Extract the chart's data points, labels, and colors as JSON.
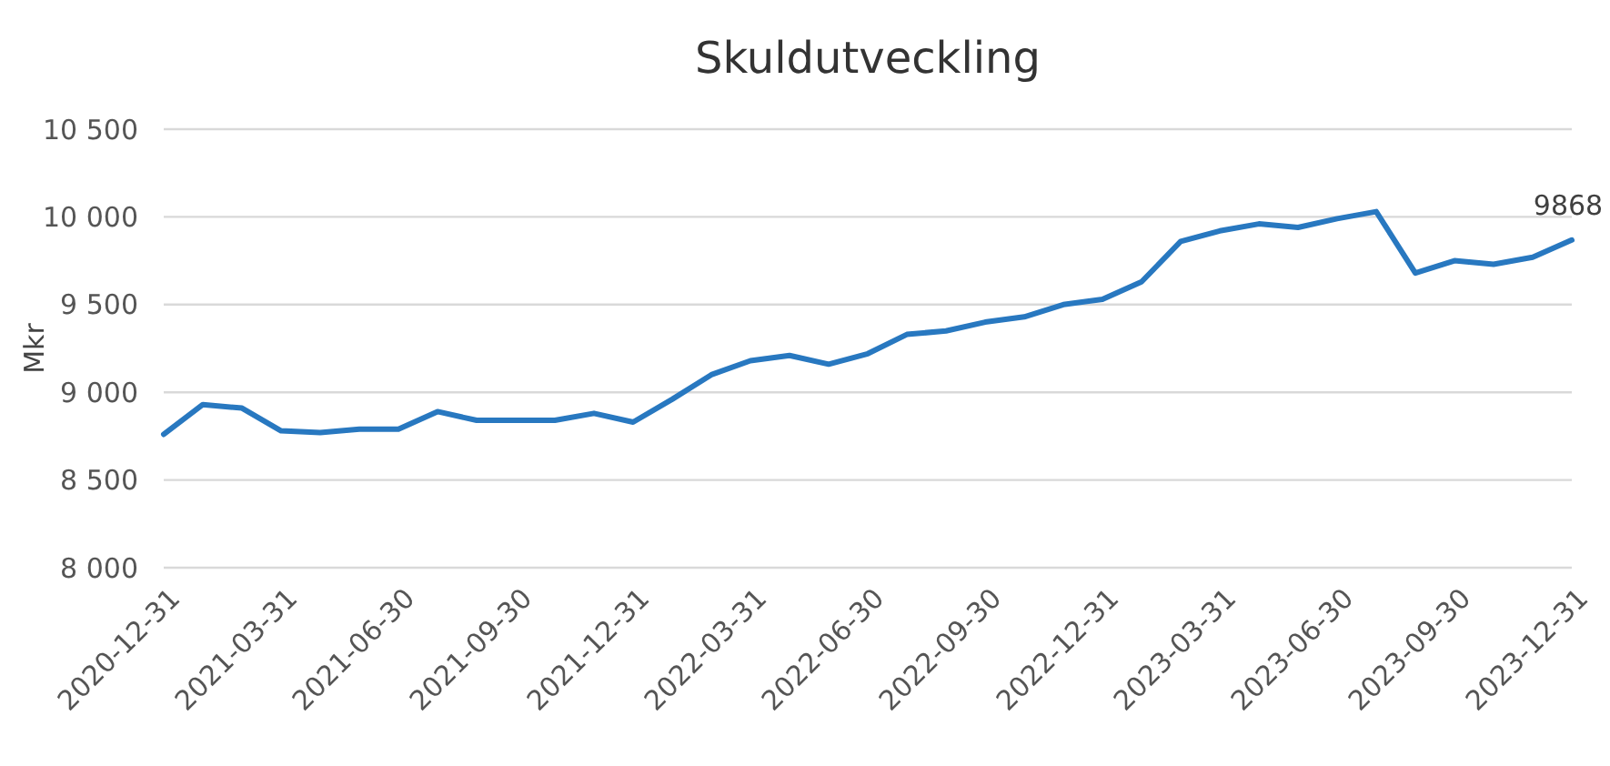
{
  "chart_data": {
    "type": "line",
    "title": "Skuldutveckling",
    "ylabel": "Mkr",
    "categories": [
      "2020-12-31",
      null,
      null,
      "2021-03-31",
      null,
      null,
      "2021-06-30",
      null,
      null,
      "2021-09-30",
      null,
      null,
      "2021-12-31",
      null,
      null,
      "2022-03-31",
      null,
      null,
      "2022-06-30",
      null,
      null,
      "2022-09-30",
      null,
      null,
      "2022-12-31",
      null,
      null,
      "2023-03-31",
      null,
      null,
      "2023-06-30",
      null,
      null,
      "2023-09-30",
      null,
      null,
      "2023-12-31"
    ],
    "series": [
      {
        "color": "#2878c0",
        "values": [
          8760,
          8930,
          8910,
          8780,
          8770,
          8790,
          8790,
          8890,
          8840,
          8840,
          8840,
          8880,
          8830,
          8960,
          9100,
          9180,
          9210,
          9160,
          9220,
          9330,
          9350,
          9400,
          9430,
          9500,
          9530,
          9630,
          9860,
          9920,
          9960,
          9940,
          9990,
          10030,
          9680,
          9750,
          9730,
          9770,
          9868
        ],
        "value_labels": [
          null,
          null,
          null,
          null,
          null,
          null,
          null,
          null,
          null,
          null,
          null,
          null,
          null,
          null,
          null,
          null,
          null,
          null,
          null,
          null,
          null,
          null,
          null,
          null,
          null,
          null,
          null,
          null,
          null,
          null,
          null,
          null,
          null,
          null,
          null,
          null,
          "9868"
        ]
      }
    ],
    "ylim": [
      8000,
      10500
    ],
    "yticks": [
      {
        "value": 8000,
        "label": "8 000"
      },
      {
        "value": 8500,
        "label": "8 500"
      },
      {
        "value": 9000,
        "label": "9 000"
      },
      {
        "value": 9500,
        "label": "9 500"
      },
      {
        "value": 10000,
        "label": "10 000"
      },
      {
        "value": 10500,
        "label": "10 500"
      }
    ],
    "grid": "y",
    "marker": "none",
    "line_style": "solid"
  }
}
